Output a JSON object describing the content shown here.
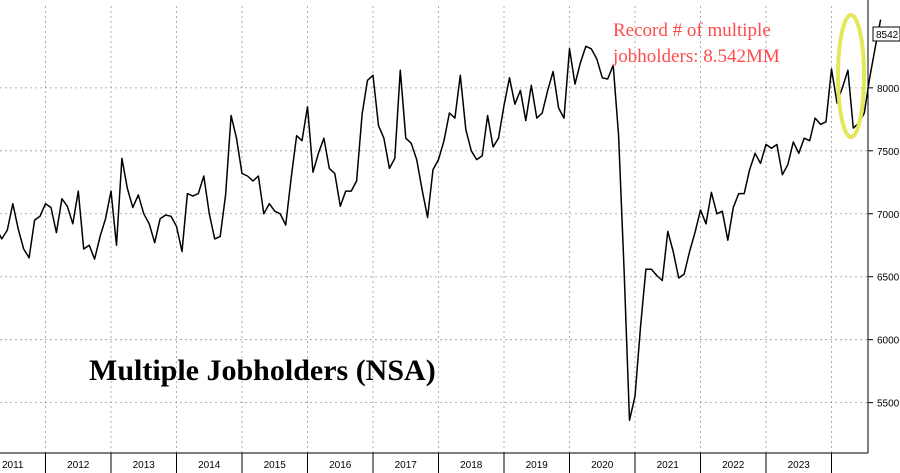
{
  "chart_data": {
    "type": "line",
    "title": "Multiple Jobholders (NSA)",
    "xlabel": "",
    "ylabel": "",
    "x_tick_labels": [
      "2011",
      "2012",
      "2013",
      "2014",
      "2015",
      "2016",
      "2017",
      "2018",
      "2019",
      "2020",
      "2021",
      "2022",
      "2023"
    ],
    "ylim": [
      5100,
      8650
    ],
    "y_ticks": [
      5500,
      6000,
      6500,
      7000,
      7500,
      8000
    ],
    "y_tick_labels": [
      "5500",
      "6000",
      "6500",
      "7000",
      "7500",
      "8000"
    ],
    "grid": true,
    "y_axis_side": "right",
    "last_value_label": "8542",
    "annotation": {
      "text_lines": [
        "Record # of multiple",
        "jobholders: 8.542MM"
      ],
      "color": "#ff4b4b",
      "highlight_color": "#e2e85a"
    },
    "series": [
      {
        "x_start": "2011-01",
        "frequency": "monthly",
        "values": [
          6850,
          6900,
          6620,
          6880,
          6800,
          6870,
          7080,
          6880,
          6720,
          6650,
          6950,
          6980,
          7080,
          7050,
          6850,
          7120,
          7060,
          6920,
          7180,
          6720,
          6750,
          6640,
          6820,
          6960,
          7180,
          6750,
          7440,
          7200,
          7050,
          7150,
          7000,
          6920,
          6770,
          6960,
          6990,
          6980,
          6900,
          6700,
          7160,
          7140,
          7160,
          7300,
          7000,
          6800,
          6820,
          7150,
          7780,
          7600,
          7320,
          7300,
          7260,
          7300,
          7000,
          7080,
          7020,
          7000,
          6910,
          7280,
          7620,
          7580,
          7850,
          7330,
          7480,
          7600,
          7360,
          7320,
          7060,
          7180,
          7180,
          7260,
          7790,
          8060,
          8100,
          7700,
          7600,
          7360,
          7440,
          8140,
          7600,
          7560,
          7430,
          7190,
          6970,
          7350,
          7430,
          7580,
          7800,
          7760,
          8100,
          7670,
          7500,
          7430,
          7460,
          7780,
          7530,
          7600,
          7860,
          8080,
          7870,
          7980,
          7740,
          8020,
          7760,
          7800,
          7980,
          8130,
          7840,
          7760,
          8310,
          8030,
          8200,
          8330,
          8310,
          8230,
          8080,
          8070,
          8180,
          7620,
          6550,
          5360,
          5550,
          6100,
          6560,
          6560,
          6510,
          6470,
          6860,
          6700,
          6490,
          6520,
          6700,
          6850,
          7030,
          6920,
          7170,
          7000,
          7020,
          6790,
          7050,
          7160,
          7160,
          7350,
          7480,
          7400,
          7550,
          7520,
          7550,
          7310,
          7390,
          7570,
          7480,
          7600,
          7580,
          7760,
          7710,
          7730,
          8150,
          7880,
          8000,
          8140,
          7680,
          7720,
          7800,
          8080,
          8320,
          8542
        ]
      }
    ]
  }
}
